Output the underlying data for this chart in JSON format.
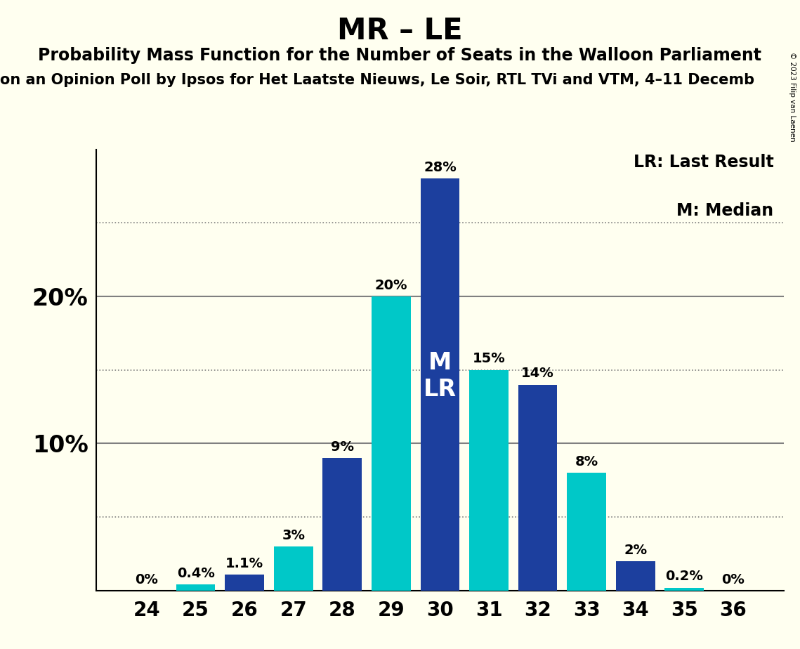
{
  "title": "MR – LE",
  "subtitle": "Probability Mass Function for the Number of Seats in the Walloon Parliament",
  "subtitle2": "on an Opinion Poll by Ipsos for Het Laatste Nieuws, Le Soir, RTL TVi and VTM, 4–11 Decemb",
  "copyright": "© 2023 Filip van Laenen",
  "seats": [
    24,
    25,
    26,
    27,
    28,
    29,
    30,
    31,
    32,
    33,
    34,
    35,
    36
  ],
  "values": [
    0.0,
    0.4,
    1.1,
    3.0,
    9.0,
    20.0,
    28.0,
    15.0,
    14.0,
    8.0,
    2.0,
    0.2,
    0.0
  ],
  "labels": [
    "0%",
    "0.4%",
    "1.1%",
    "3%",
    "9%",
    "20%",
    "28%",
    "15%",
    "14%",
    "8%",
    "2%",
    "0.2%",
    "0%"
  ],
  "bar_colors": [
    "#1c3f9e",
    "#00c8c8",
    "#1c3f9e",
    "#00c8c8",
    "#1c3f9e",
    "#00c8c8",
    "#1c3f9e",
    "#00c8c8",
    "#1c3f9e",
    "#00c8c8",
    "#1c3f9e",
    "#00c8c8",
    "#1c3f9e"
  ],
  "median_seat": 30,
  "lr_seat": 30,
  "legend_lr": "LR: Last Result",
  "legend_m": "M: Median",
  "ylim": [
    0,
    30
  ],
  "background_color": "#fffff0",
  "bar_width": 0.8,
  "title_fontsize": 30,
  "subtitle_fontsize": 17,
  "subtitle2_fontsize": 15,
  "label_fontsize": 14,
  "tick_fontsize": 20,
  "ytick_fontsize": 24,
  "legend_fontsize": 17,
  "annotation_color": "#ffffff"
}
